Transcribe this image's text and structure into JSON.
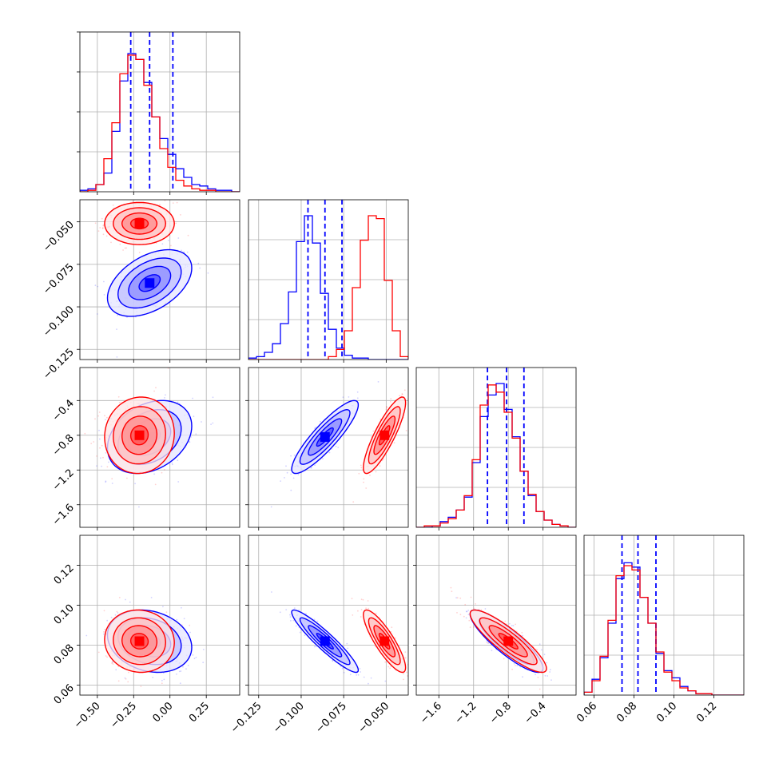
{
  "chart_data": {
    "type": "corner",
    "grid": true,
    "series": [
      {
        "color": "#0000ff",
        "params": [
          {
            "median": -0.14,
            "q16": -0.27,
            "q84": 0.02,
            "sigma": 0.145,
            "median_line": true,
            "quantile_lines": true
          },
          {
            "median": -0.086,
            "q16": -0.096,
            "q84": -0.076,
            "sigma": 0.0098,
            "median_line": true,
            "quantile_lines": true
          },
          {
            "median": -0.82,
            "q16": -1.04,
            "q84": -0.62,
            "sigma": 0.21,
            "median_line": true,
            "quantile_lines": true
          },
          {
            "median": 0.082,
            "q16": 0.074,
            "q84": 0.091,
            "sigma": 0.0078,
            "median_line": true,
            "quantile_lines": true
          }
        ],
        "correlations": {
          "0-1": 0.45,
          "0-2": 0.3,
          "0-3": -0.2,
          "1-2": 0.88,
          "1-3": -0.93,
          "2-3": -0.87
        },
        "histograms": [
          [
            0.01,
            0.02,
            0.05,
            0.13,
            0.42,
            0.77,
            0.96,
            0.92,
            0.76,
            0.52,
            0.37,
            0.26,
            0.16,
            0.1,
            0.05,
            0.04,
            0.02,
            0.01,
            0.01,
            0
          ],
          [
            0.01,
            0.02,
            0.05,
            0.11,
            0.25,
            0.47,
            0.82,
            1.0,
            0.81,
            0.46,
            0.21,
            0.08,
            0.03,
            0.01,
            0.01,
            0,
            0,
            0,
            0,
            0
          ],
          [
            0,
            0,
            0.01,
            0.04,
            0.07,
            0.12,
            0.21,
            0.45,
            0.77,
            0.92,
            1.0,
            0.82,
            0.63,
            0.39,
            0.22,
            0.11,
            0.05,
            0.02,
            0.01,
            0
          ],
          [
            0.02,
            0.11,
            0.26,
            0.5,
            0.81,
            0.92,
            0.89,
            0.68,
            0.5,
            0.29,
            0.17,
            0.12,
            0.06,
            0.03,
            0.01,
            0.01,
            0,
            0,
            0,
            0
          ]
        ]
      },
      {
        "color": "#ff0000",
        "params": [
          {
            "median": -0.21,
            "sigma": 0.12
          },
          {
            "median": -0.051,
            "sigma": 0.0062
          },
          {
            "median": -0.8,
            "sigma": 0.22
          },
          {
            "median": 0.082,
            "sigma": 0.0078
          }
        ],
        "correlations": {
          "0-1": 0.0,
          "0-2": 0.05,
          "0-3": -0.05,
          "1-2": 0.85,
          "1-3": -0.85,
          "2-3": -0.88
        },
        "histograms": [
          [
            0,
            0.01,
            0.05,
            0.23,
            0.48,
            0.82,
            0.95,
            0.92,
            0.74,
            0.52,
            0.3,
            0.17,
            0.08,
            0.04,
            0.02,
            0.01,
            0.01,
            0,
            0,
            0
          ],
          [
            0,
            0,
            0,
            0,
            0,
            0,
            0,
            0,
            0,
            0,
            0.02,
            0.07,
            0.2,
            0.5,
            0.83,
            1.0,
            0.98,
            0.55,
            0.2,
            0.02
          ],
          [
            0,
            0.01,
            0.01,
            0.03,
            0.06,
            0.12,
            0.22,
            0.47,
            0.85,
            0.99,
            0.94,
            0.8,
            0.62,
            0.39,
            0.23,
            0.11,
            0.05,
            0.02,
            0.01,
            0
          ],
          [
            0.02,
            0.1,
            0.27,
            0.52,
            0.83,
            0.9,
            0.87,
            0.68,
            0.5,
            0.3,
            0.16,
            0.1,
            0.05,
            0.03,
            0.01,
            0.01,
            0,
            0,
            0,
            0
          ]
        ]
      }
    ],
    "axes": [
      {
        "range": [
          -0.62,
          0.48
        ],
        "ticks": [
          -0.5,
          -0.25,
          0.0,
          0.25
        ],
        "tick_labels": [
          "−0.50",
          "−0.25",
          "0.00",
          "0.25"
        ]
      },
      {
        "range": [
          -0.131,
          -0.037
        ],
        "ticks": [
          -0.125,
          -0.1,
          -0.075,
          -0.05
        ],
        "tick_labels": [
          "−0.125",
          "−0.100",
          "−0.075",
          "−0.050"
        ]
      },
      {
        "range": [
          -1.86,
          -0.02
        ],
        "ticks": [
          -1.6,
          -1.2,
          -0.8,
          -0.4
        ],
        "tick_labels": [
          "−1.6",
          "−1.2",
          "−0.8",
          "−0.4"
        ]
      },
      {
        "range": [
          0.055,
          0.135
        ],
        "ticks": [
          0.06,
          0.08,
          0.1,
          0.12
        ],
        "tick_labels": [
          "0.06",
          "0.08",
          "0.10",
          "0.12"
        ]
      }
    ]
  }
}
